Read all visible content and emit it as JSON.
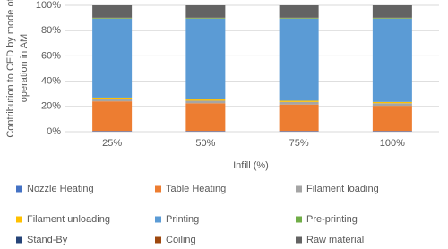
{
  "chart_data": {
    "type": "stacked_bar",
    "y_label_lines": [
      "Contribution to CED by mode of",
      "operation in AM"
    ],
    "x_label": "Infill (%)",
    "categories": [
      "25%",
      "50%",
      "75%",
      "100%"
    ],
    "series": [
      {
        "name": "Nozzle Heating",
        "color": "#4472c4",
        "values": [
          0.5,
          0.5,
          0.5,
          0.5
        ]
      },
      {
        "name": "Table Heating",
        "color": "#ed7d31",
        "values": [
          23.5,
          22,
          21,
          20
        ]
      },
      {
        "name": "Filament loading",
        "color": "#a5a5a5",
        "values": [
          2,
          2,
          2,
          2
        ]
      },
      {
        "name": "Filament unloading",
        "color": "#ffc000",
        "values": [
          1,
          1,
          1,
          1
        ]
      },
      {
        "name": "Printing",
        "color": "#5b9bd5",
        "values": [
          62.5,
          64,
          65,
          66
        ]
      },
      {
        "name": "Pre-printing",
        "color": "#70ad47",
        "values": [
          0.5,
          0.5,
          0.5,
          0.5
        ]
      },
      {
        "name": "Stand-By",
        "color": "#264478",
        "values": [
          0,
          0,
          0,
          0
        ]
      },
      {
        "name": "Coiling",
        "color": "#9e480e",
        "values": [
          0.2,
          0.2,
          0.2,
          0.2
        ]
      },
      {
        "name": "Raw material",
        "color": "#636363",
        "values": [
          9.8,
          9.8,
          9.8,
          9.8
        ]
      }
    ],
    "ylim": [
      0,
      100
    ],
    "yticks": [
      {
        "value": 0,
        "label": "0%"
      },
      {
        "value": 20,
        "label": "20%"
      },
      {
        "value": 40,
        "label": "40%"
      },
      {
        "value": 60,
        "label": "60%"
      },
      {
        "value": 80,
        "label": "80%"
      },
      {
        "value": 100,
        "label": "100%"
      }
    ],
    "grid": true,
    "legend_position": "bottom"
  }
}
